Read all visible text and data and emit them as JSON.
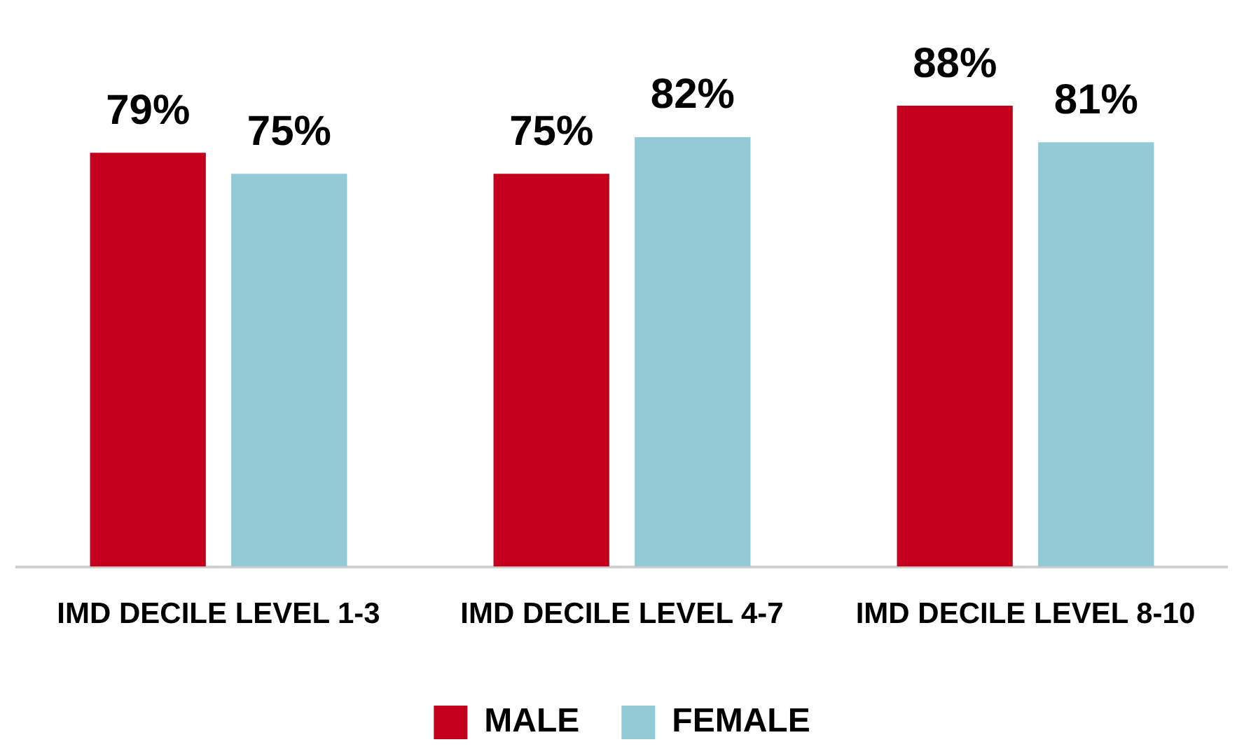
{
  "chart_data": {
    "type": "bar",
    "categories": [
      "IMD DECILE LEVEL 1-3",
      "IMD DECILE LEVEL 4-7",
      "IMD DECILE LEVEL 8-10"
    ],
    "series": [
      {
        "name": "MALE",
        "color": "#c5001e",
        "values": [
          79,
          75,
          88
        ],
        "value_labels": [
          "79%",
          "75%",
          "88%"
        ]
      },
      {
        "name": "FEMALE",
        "color": "#92cbd6",
        "values": [
          75,
          82,
          81
        ],
        "value_labels": [
          "75%",
          "82%",
          "81%"
        ]
      }
    ],
    "legend": "bottom",
    "grid": false
  }
}
